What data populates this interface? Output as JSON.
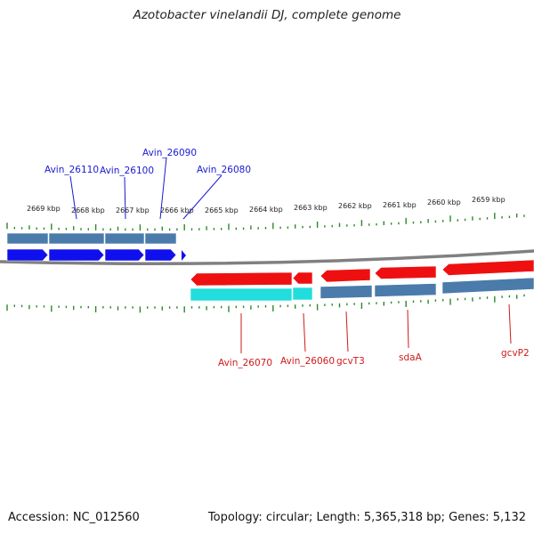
{
  "title": "Azotobacter vinelandii DJ, complete genome",
  "footer": {
    "accession": "Accession: NC_012560",
    "topology": "Topology: circular; Length: 5,365,318 bp; Genes: 5,132"
  },
  "colors": {
    "forward_gene": "#1010ee",
    "reverse_gene": "#ee1010",
    "cds_bar": "#4a7bab",
    "cds_bar_highlight": "#22dddd",
    "ticks": "#2a8a2a",
    "backbone": "#808080",
    "label_top": "#1a1ad0",
    "label_bottom": "#d01a1a"
  },
  "scale_labels": [
    "2669 kbp",
    "2668 kbp",
    "2667 kbp",
    "2666 kbp",
    "2665 kbp",
    "2664 kbp",
    "2663 kbp",
    "2662 kbp",
    "2661 kbp",
    "2660 kbp",
    "2659 kbp"
  ],
  "top_genes": [
    "Avin_26110",
    "Avin_26100",
    "Avin_26090",
    "Avin_26080"
  ],
  "bottom_genes": [
    "Avin_26070",
    "Avin_26060",
    "gcvT3",
    "sdaA",
    "gcvP2"
  ]
}
